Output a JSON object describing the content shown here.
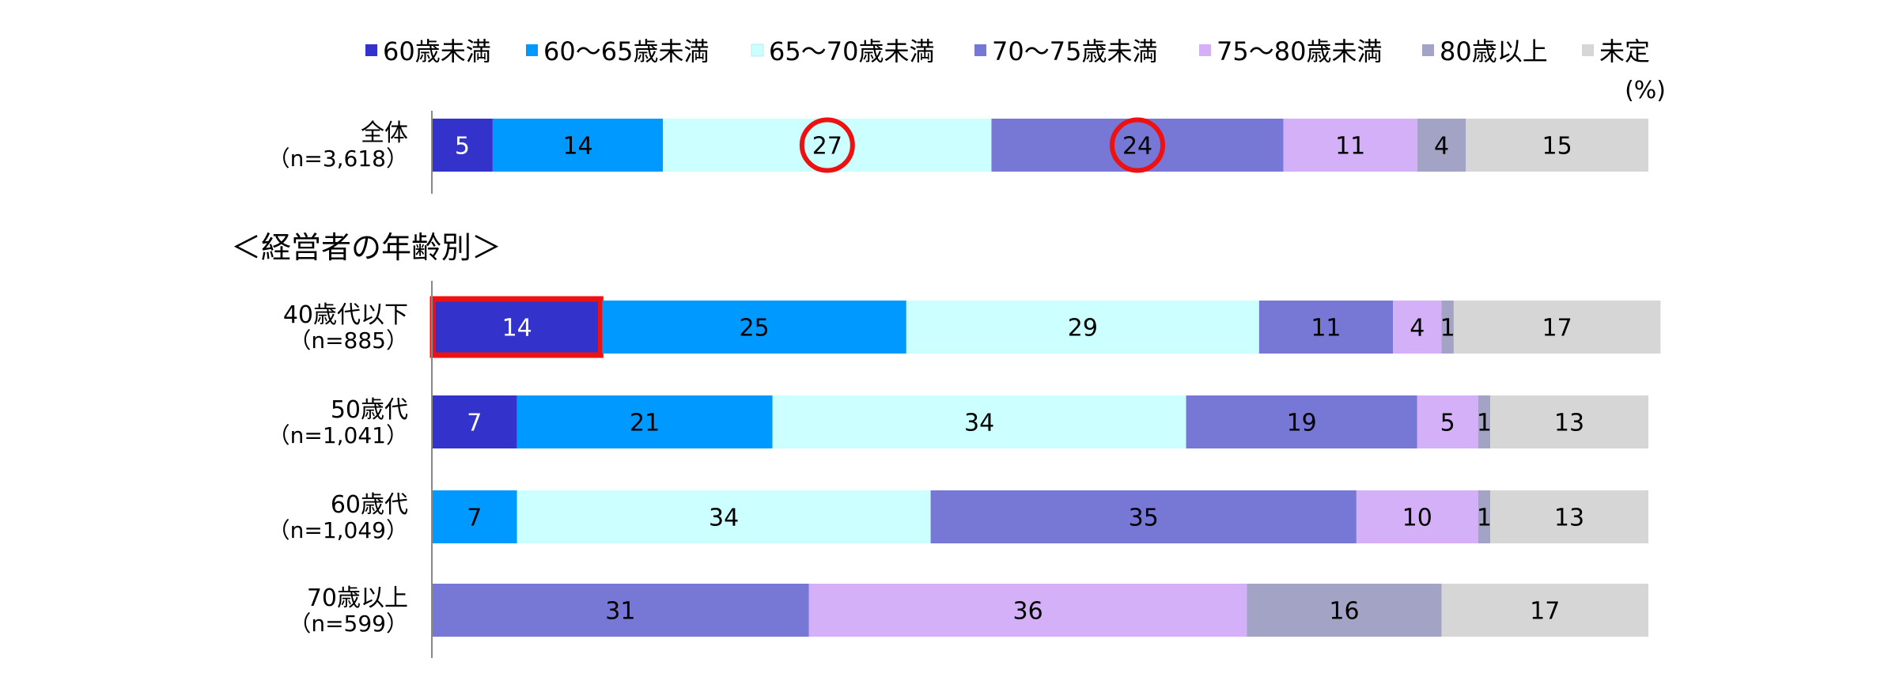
{
  "chart_data": {
    "type": "bar",
    "orientation": "horizontal",
    "stacked": true,
    "percent_unit_label": "(%)",
    "xlim": [
      0,
      100
    ],
    "legend_position": "top",
    "grid": false,
    "series": [
      {
        "name": "60歳未満",
        "color": "#3333cc"
      },
      {
        "name": "60～65歳未満",
        "color": "#0099ff"
      },
      {
        "name": "65～70歳未満",
        "color": "#ccffff"
      },
      {
        "name": "70～75歳未満",
        "color": "#7777d6"
      },
      {
        "name": "75～80歳未満",
        "color": "#d4b0f9"
      },
      {
        "name": "80歳以上",
        "color": "#a3a3c6"
      },
      {
        "name": "未定",
        "color": "#d6d6d6"
      }
    ],
    "section_label": "＜経営者の年齢別＞",
    "rows": [
      {
        "label": "全体",
        "n": "（n=3,618）",
        "segments": [
          {
            "series": 0,
            "value": 5
          },
          {
            "series": 1,
            "value": 14
          },
          {
            "series": 2,
            "value": 27,
            "highlight": "circle"
          },
          {
            "series": 3,
            "value": 24,
            "highlight": "circle"
          },
          {
            "series": 4,
            "value": 11
          },
          {
            "series": 5,
            "value": 4
          },
          {
            "series": 6,
            "value": 15
          }
        ]
      },
      {
        "label": "40歳代以下",
        "n": "（n=885）",
        "segments": [
          {
            "series": 0,
            "value": 14,
            "highlight": "box"
          },
          {
            "series": 1,
            "value": 25
          },
          {
            "series": 2,
            "value": 29
          },
          {
            "series": 3,
            "value": 11
          },
          {
            "series": 4,
            "value": 4
          },
          {
            "series": 5,
            "value": 1
          },
          {
            "series": 6,
            "value": 17
          }
        ]
      },
      {
        "label": "50歳代",
        "n": "（n=1,041）",
        "segments": [
          {
            "series": 0,
            "value": 7
          },
          {
            "series": 1,
            "value": 21
          },
          {
            "series": 2,
            "value": 34
          },
          {
            "series": 3,
            "value": 19
          },
          {
            "series": 4,
            "value": 5
          },
          {
            "series": 5,
            "value": 1
          },
          {
            "series": 6,
            "value": 13
          }
        ]
      },
      {
        "label": "60歳代",
        "n": "（n=1,049）",
        "segments": [
          {
            "series": 1,
            "value": 7
          },
          {
            "series": 2,
            "value": 34
          },
          {
            "series": 3,
            "value": 35
          },
          {
            "series": 4,
            "value": 10
          },
          {
            "series": 5,
            "value": 1
          },
          {
            "series": 6,
            "value": 13
          }
        ]
      },
      {
        "label": "70歳以上",
        "n": "（n=599）",
        "segments": [
          {
            "series": 3,
            "value": 31
          },
          {
            "series": 4,
            "value": 36
          },
          {
            "series": 5,
            "value": 16
          },
          {
            "series": 6,
            "value": 17
          }
        ]
      }
    ],
    "highlight_color": "#ee1111"
  }
}
